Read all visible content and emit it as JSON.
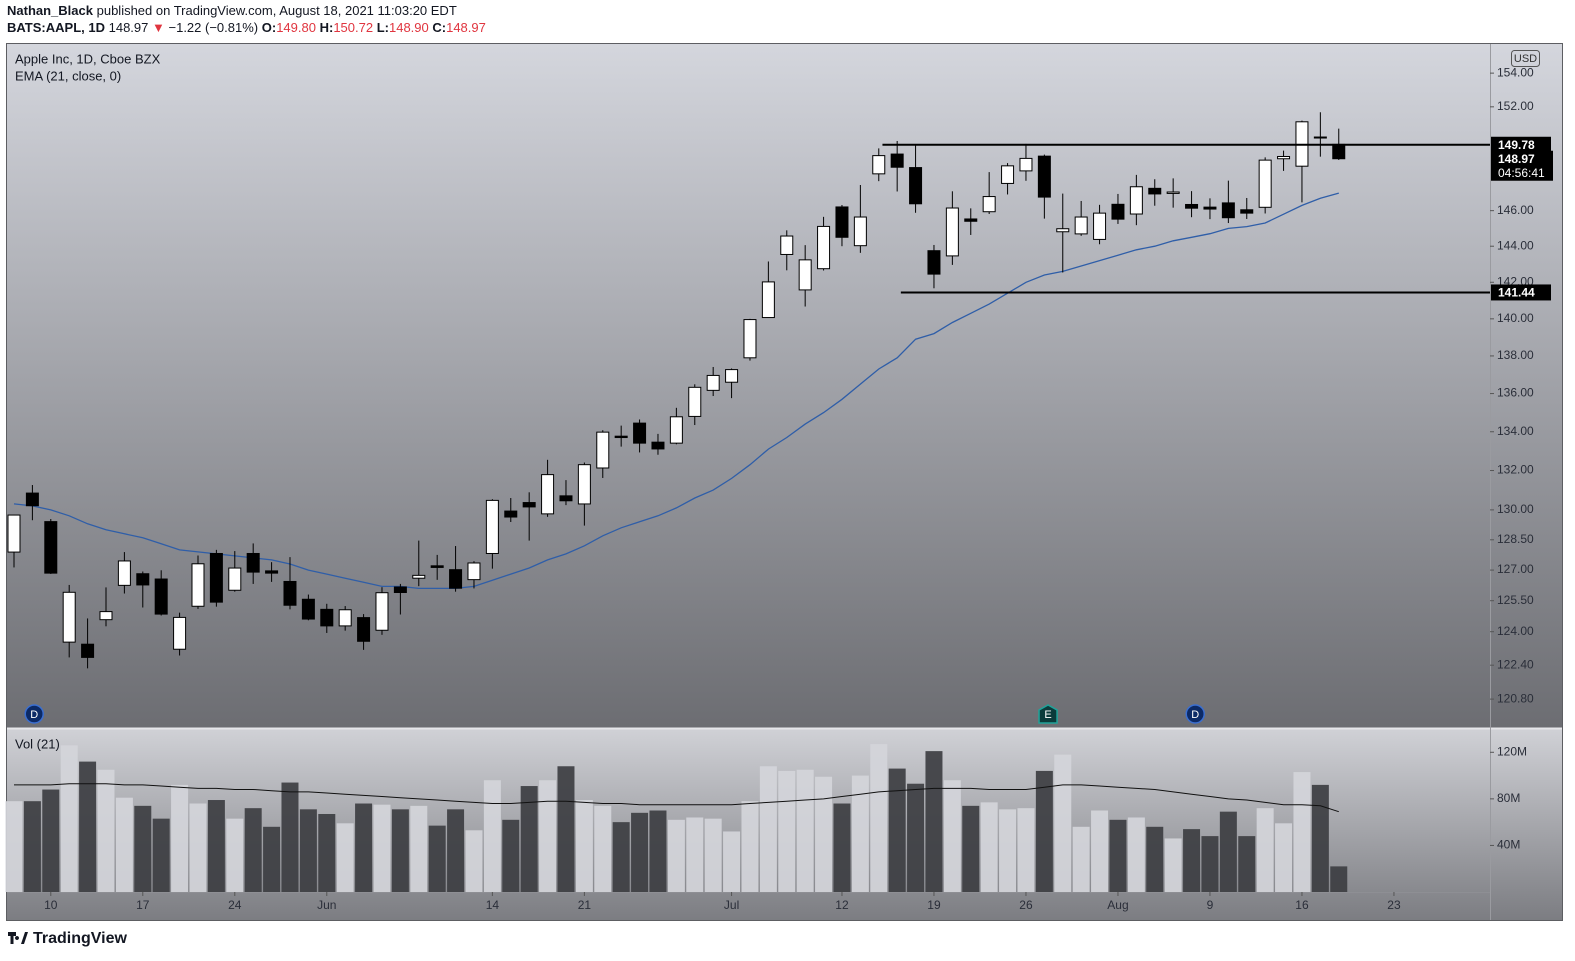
{
  "header": {
    "author": "Nathan_Black",
    "published": "published on TradingView.com, August 18, 2021 11:03:20 EDT",
    "symbol": "BATS:AAPL, 1D",
    "last": "148.97",
    "arrow": "▼",
    "change": "−1.22 (−0.81%)",
    "o_label": "O:",
    "o": "149.80",
    "h_label": "H:",
    "h": "150.72",
    "l_label": "L:",
    "l": "148.90",
    "c_label": "C:",
    "c": "148.97"
  },
  "chart_data": {
    "type": "candlestick",
    "title": "Apple Inc, 1D, Cboe BZX",
    "currency": "USD",
    "log_scale": true,
    "xlim": [
      -0.38,
      80.22
    ],
    "xticks": [
      {
        "value": 2,
        "label": "10"
      },
      {
        "value": 7,
        "label": "17"
      },
      {
        "value": 12,
        "label": "24"
      },
      {
        "value": 17,
        "label": "Jun"
      },
      {
        "value": 26,
        "label": "14"
      },
      {
        "value": 31,
        "label": "21"
      },
      {
        "value": 39,
        "label": "Jul"
      },
      {
        "value": 45,
        "label": "12"
      },
      {
        "value": 50,
        "label": "19"
      },
      {
        "value": 55,
        "label": "26"
      },
      {
        "value": 60,
        "label": "Aug"
      },
      {
        "value": 65,
        "label": "9"
      },
      {
        "value": 70,
        "label": "16"
      },
      {
        "value": 75,
        "label": "23"
      }
    ],
    "ylim": [
      119.5,
      155.75
    ],
    "yticks": [
      {
        "value": 154,
        "label": "154.00"
      },
      {
        "value": 152,
        "label": "152.00"
      },
      {
        "value": 146,
        "label": "146.00"
      },
      {
        "value": 144,
        "label": "144.00"
      },
      {
        "value": 142,
        "label": "142.00"
      },
      {
        "value": 140,
        "label": "140.00"
      },
      {
        "value": 138,
        "label": "138.00"
      },
      {
        "value": 136,
        "label": "136.00"
      },
      {
        "value": 134,
        "label": "134.00"
      },
      {
        "value": 132,
        "label": "132.00"
      },
      {
        "value": 130,
        "label": "130.00"
      },
      {
        "value": 128.5,
        "label": "128.50"
      },
      {
        "value": 127,
        "label": "127.00"
      },
      {
        "value": 125.5,
        "label": "125.50"
      },
      {
        "value": 124,
        "label": "124.00"
      },
      {
        "value": 122.4,
        "label": "122.40"
      },
      {
        "value": 120.8,
        "label": "120.80"
      }
    ],
    "up_color": "#ffffff",
    "down_color": "#000000",
    "open": [
      127.89,
      130.85,
      129.41,
      123.5,
      123.4,
      124.58,
      126.25,
      126.82,
      126.56,
      123.16,
      125.23,
      127.82,
      126.01,
      127.82,
      126.96,
      126.44,
      125.57,
      125.08,
      124.28,
      124.68,
      124.07,
      126.17,
      126.6,
      127.21,
      127.02,
      126.53,
      127.82,
      129.94,
      130.37,
      129.8,
      130.71,
      130.3,
      132.13,
      133.77,
      134.45,
      133.46,
      133.41,
      134.8,
      136.17,
      136.6,
      137.9,
      140.07,
      143.54,
      141.58,
      142.75,
      146.21,
      144.03,
      148.1,
      149.24,
      148.46,
      143.75,
      143.46,
      145.53,
      145.94,
      147.55,
      148.27,
      149.12,
      144.81,
      144.69,
      144.38,
      146.36,
      145.81,
      147.27,
      146.98,
      146.35,
      146.2,
      146.44,
      146.05,
      146.19,
      148.97,
      148.54,
      150.23,
      149.8
    ],
    "high": [
      129.75,
      131.26,
      129.54,
      126.27,
      124.64,
      126.15,
      127.89,
      126.93,
      126.99,
      124.92,
      127.72,
      128.0,
      127.94,
      128.32,
      127.39,
      127.64,
      125.8,
      125.35,
      125.24,
      124.85,
      126.16,
      126.32,
      128.46,
      127.75,
      128.19,
      127.44,
      130.54,
      130.6,
      130.89,
      132.55,
      131.51,
      132.41,
      134.08,
      134.32,
      134.64,
      133.89,
      135.25,
      136.49,
      137.41,
      137.33,
      140.0,
      143.15,
      144.89,
      144.06,
      145.65,
      146.32,
      147.46,
      149.57,
      150.0,
      149.76,
      144.07,
      147.1,
      146.13,
      148.2,
      148.72,
      149.83,
      149.21,
      146.97,
      146.55,
      146.33,
      146.95,
      148.04,
      147.79,
      147.84,
      147.11,
      146.7,
      147.71,
      146.72,
      149.05,
      149.44,
      151.19,
      151.68,
      150.72
    ],
    "low": [
      127.13,
      129.48,
      126.81,
      122.77,
      122.25,
      124.26,
      125.85,
      125.17,
      124.78,
      122.86,
      125.1,
      125.21,
      125.94,
      126.32,
      126.42,
      125.08,
      124.55,
      123.94,
      124.05,
      123.13,
      123.85,
      124.83,
      126.21,
      126.52,
      125.94,
      126.1,
      127.07,
      129.39,
      128.46,
      129.65,
      130.24,
      129.21,
      131.62,
      133.23,
      132.93,
      132.81,
      133.35,
      134.35,
      135.87,
      135.76,
      137.75,
      140.07,
      142.66,
      140.67,
      142.65,
      144.0,
      143.63,
      147.68,
      147.09,
      145.88,
      141.67,
      142.96,
      144.63,
      145.81,
      146.92,
      147.7,
      145.55,
      142.54,
      144.58,
      144.11,
      145.25,
      145.18,
      146.28,
      146.17,
      145.63,
      145.52,
      145.3,
      145.53,
      145.84,
      148.27,
      146.47,
      149.09,
      148.9
    ],
    "close": [
      129.74,
      130.21,
      126.85,
      125.91,
      122.77,
      124.97,
      127.45,
      126.27,
      124.85,
      124.69,
      127.31,
      125.43,
      127.1,
      126.9,
      126.85,
      125.28,
      124.61,
      124.28,
      125.06,
      123.54,
      125.89,
      125.9,
      126.74,
      127.13,
      126.11,
      127.35,
      130.48,
      129.64,
      130.15,
      131.79,
      130.46,
      132.3,
      133.98,
      133.7,
      133.41,
      133.11,
      134.78,
      136.33,
      136.96,
      137.27,
      139.96,
      142.02,
      144.57,
      143.24,
      145.11,
      144.5,
      145.64,
      149.15,
      148.48,
      146.39,
      142.45,
      146.15,
      145.4,
      146.8,
      148.56,
      148.99,
      146.77,
      144.98,
      145.64,
      145.86,
      145.52,
      147.36,
      146.95,
      147.06,
      146.14,
      146.09,
      145.6,
      145.86,
      148.89,
      149.1,
      151.12,
      150.19,
      148.97
    ],
    "ema": {
      "name": "EMA (21, close, 0)",
      "color": "#2f5ea8",
      "values": [
        130.3,
        130.2,
        130.0,
        129.7,
        129.3,
        129.0,
        128.8,
        128.6,
        128.3,
        128.0,
        127.9,
        127.8,
        127.7,
        127.6,
        127.5,
        127.3,
        127.0,
        126.8,
        126.6,
        126.4,
        126.2,
        126.2,
        126.1,
        126.1,
        126.1,
        126.2,
        126.5,
        126.8,
        127.1,
        127.5,
        127.8,
        128.2,
        128.7,
        129.1,
        129.4,
        129.7,
        130.1,
        130.6,
        131.0,
        131.6,
        132.3,
        133.1,
        133.7,
        134.4,
        135.0,
        135.7,
        136.5,
        137.3,
        137.9,
        138.9,
        139.2,
        139.8,
        140.3,
        140.8,
        141.4,
        142.0,
        142.4,
        142.6,
        142.9,
        143.2,
        143.5,
        143.8,
        144.0,
        144.3,
        144.5,
        144.7,
        145.0,
        145.1,
        145.3,
        145.8,
        146.3,
        146.7,
        147.0
      ]
    },
    "levels": [
      {
        "value": 149.78,
        "start": 47.2
      },
      {
        "value": 141.44,
        "start": 48.2
      }
    ],
    "last_price": {
      "value": 148.97,
      "countdown": "04:56:41"
    },
    "events": [
      {
        "label": "D",
        "x": 1.1
      },
      {
        "label": "E",
        "x": 56.2
      },
      {
        "label": "D",
        "x": 64.2
      }
    ],
    "volume": {
      "name": "Vol (21)",
      "up_color": "#d4d5da",
      "down_color": "#3d3e42",
      "ylim": [
        0,
        140
      ],
      "yticks": [
        {
          "value": 40,
          "label": "40M"
        },
        {
          "value": 80,
          "label": "80M"
        },
        {
          "value": 120,
          "label": "120M"
        }
      ],
      "values": [
        78,
        78,
        88,
        126,
        112,
        105,
        81,
        74,
        63,
        92,
        76,
        79,
        63,
        72,
        56,
        94,
        71,
        67,
        59,
        76,
        75,
        71,
        74,
        57,
        71,
        53,
        96,
        62,
        91,
        96,
        108,
        79,
        74,
        60,
        68,
        70,
        62,
        64,
        63,
        52,
        78,
        108,
        104,
        105,
        99,
        76,
        100,
        127,
        106,
        93,
        121,
        96,
        74,
        77,
        71,
        72,
        104,
        118,
        56,
        70,
        62,
        64,
        56,
        46,
        54,
        48,
        69,
        48,
        72,
        59,
        103,
        92,
        22
      ],
      "ma": {
        "color": "#111111",
        "values": [
          92,
          92,
          92,
          93,
          93,
          93,
          92,
          92,
          91,
          90,
          89,
          89,
          88,
          88,
          87,
          86,
          86,
          85,
          84,
          83,
          82,
          81,
          80,
          79,
          78,
          77,
          76,
          76,
          77,
          78,
          78,
          77,
          76,
          76,
          75,
          75,
          75,
          75,
          75,
          75,
          76,
          77,
          78,
          79,
          80,
          82,
          84,
          86,
          87,
          88,
          89,
          89,
          89,
          88,
          88,
          88,
          90,
          92,
          92,
          91,
          90,
          89,
          88,
          86,
          84,
          82,
          80,
          79,
          77,
          75,
          75,
          74,
          69
        ]
      }
    }
  },
  "footer": {
    "logo": "TradingView"
  }
}
